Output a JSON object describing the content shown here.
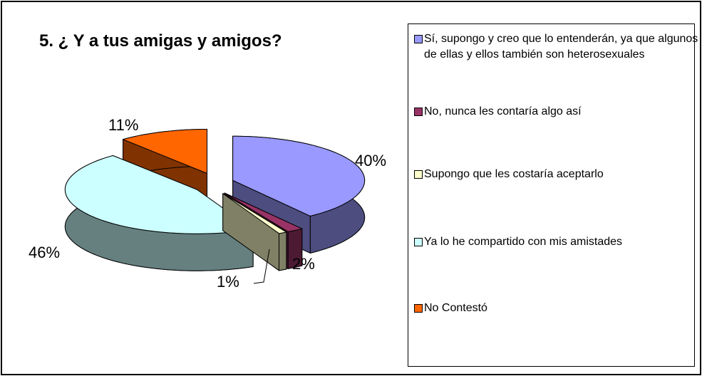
{
  "chart_data": {
    "type": "pie3d",
    "title": "5. ¿ Y a tus amigas y amigos?",
    "categories": [
      "Sí, supongo y creo que lo entenderán, ya que algunos de ellas y ellos también son heterosexuales",
      "No, nunca les contaría algo así",
      "Supongo que les costaría aceptarlo",
      "Ya lo he compartido con mis amistades",
      "No Contestó"
    ],
    "values": [
      40,
      2,
      1,
      46,
      11
    ],
    "value_labels": [
      "40%",
      "2%",
      "1%",
      "46%",
      "11%"
    ],
    "colors": [
      "#9999ff",
      "#993366",
      "#ffffcc",
      "#ccffff",
      "#ff6600"
    ],
    "legend": "right"
  }
}
